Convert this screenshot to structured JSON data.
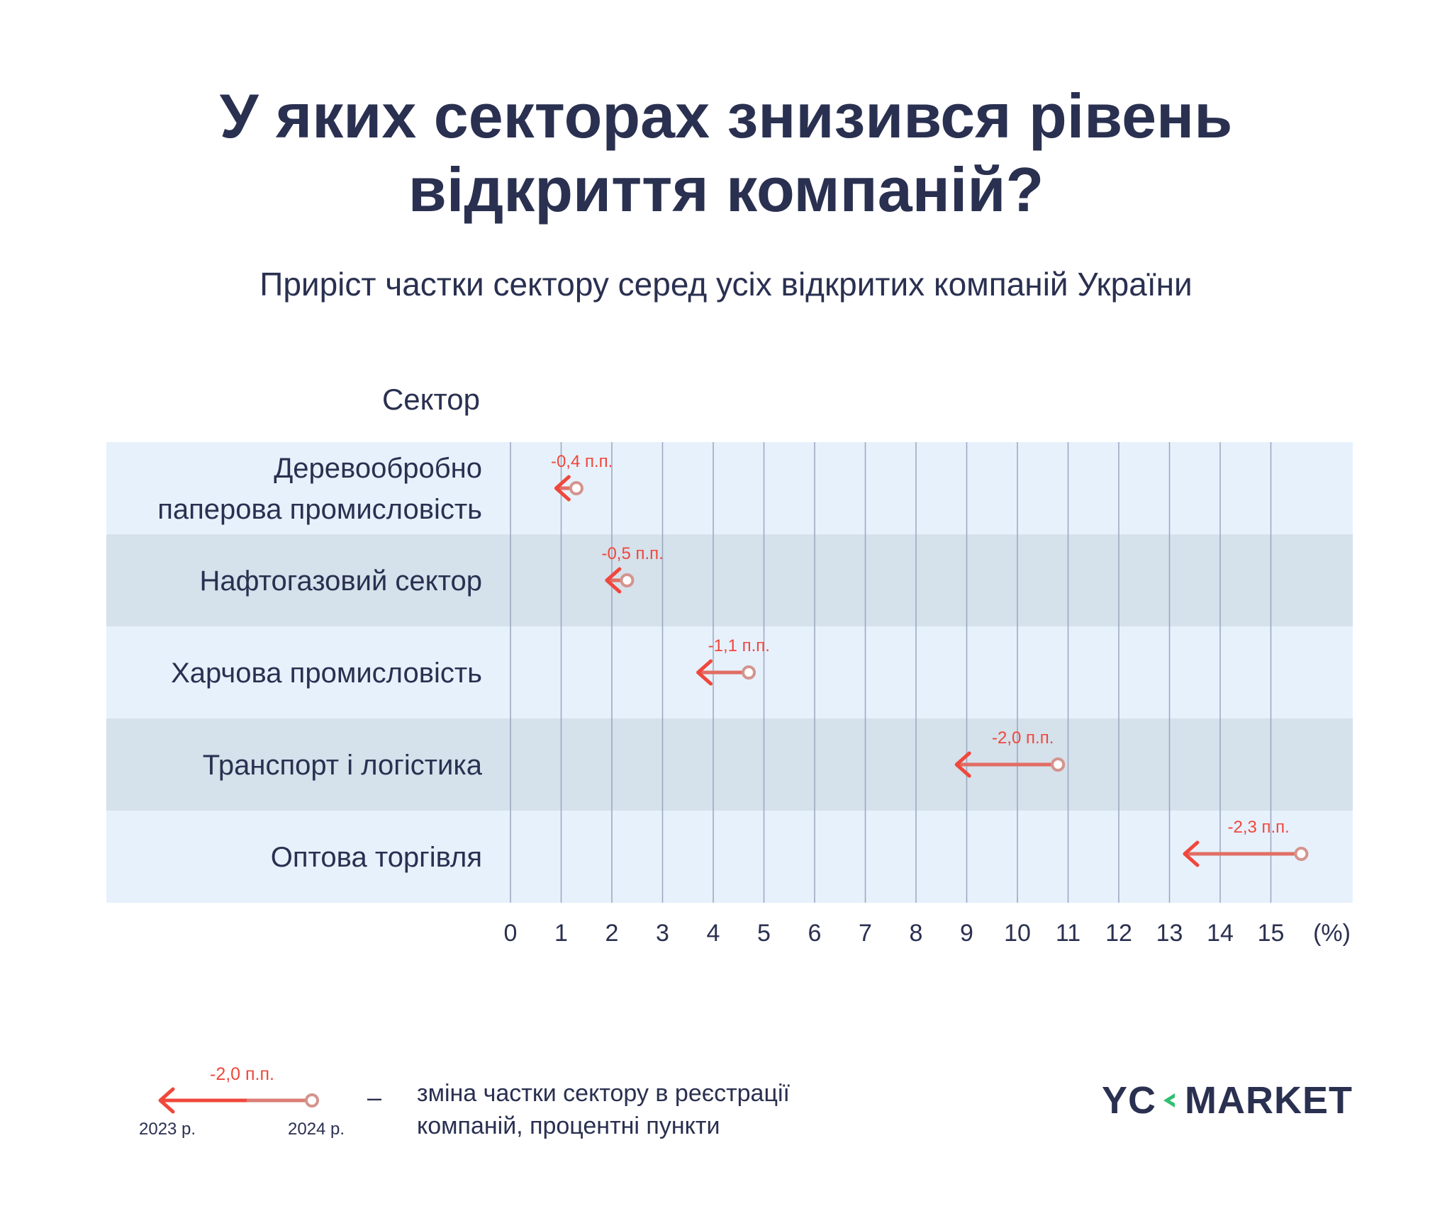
{
  "title_line1": "У яких секторах знизився рівень",
  "title_line2": "відкриття компаній?",
  "subtitle": "Приріст частки сектору серед усіх відкритих компаній України",
  "colors": {
    "arrow": "#f0473c",
    "arrow_start": "#d4948e",
    "row_light": "#e7f1fc",
    "row_dark": "#d5e1eb",
    "text": "#2a3050",
    "logo_accent": "#2fbf71"
  },
  "chart_data": {
    "type": "arrow-dot",
    "category_axis_label": "Сектор",
    "x_unit_label": "(%)",
    "xlim": [
      0,
      16
    ],
    "x_ticks": [
      0,
      1,
      2,
      3,
      4,
      5,
      6,
      7,
      8,
      9,
      10,
      11,
      12,
      13,
      14,
      15
    ],
    "grid": true,
    "rows": [
      {
        "sector_lines": [
          "Деревообробно",
          "паперова промисловість"
        ],
        "from_2024": 1.3,
        "to_2023": 0.9,
        "change_label": "-0,4 п.п."
      },
      {
        "sector_lines": [
          "Нафтогазовий сектор"
        ],
        "from_2024": 2.3,
        "to_2023": 1.9,
        "change_label": "-0,5 п.п."
      },
      {
        "sector_lines": [
          "Харчова промисловість"
        ],
        "from_2024": 4.7,
        "to_2023": 3.7,
        "change_label": "-1,1 п.п."
      },
      {
        "sector_lines": [
          "Транспорт і логістика"
        ],
        "from_2024": 10.8,
        "to_2023": 8.8,
        "change_label": "-2,0 п.п."
      },
      {
        "sector_lines": [
          "Оптова торгівля"
        ],
        "from_2024": 15.6,
        "to_2023": 13.3,
        "change_label": "-2,3 п.п."
      }
    ]
  },
  "legend": {
    "change_label": "-2,0 п.п.",
    "year_start": "2023 р.",
    "year_end": "2024 р.",
    "dash": "–",
    "description_line1": "зміна частки сектору в реєстрації",
    "description_line2": "компаній, процентні пункти"
  },
  "logo": {
    "part1": "YC",
    "part2": "MARKET",
    "mark_icon": "chevron-left-icon"
  }
}
